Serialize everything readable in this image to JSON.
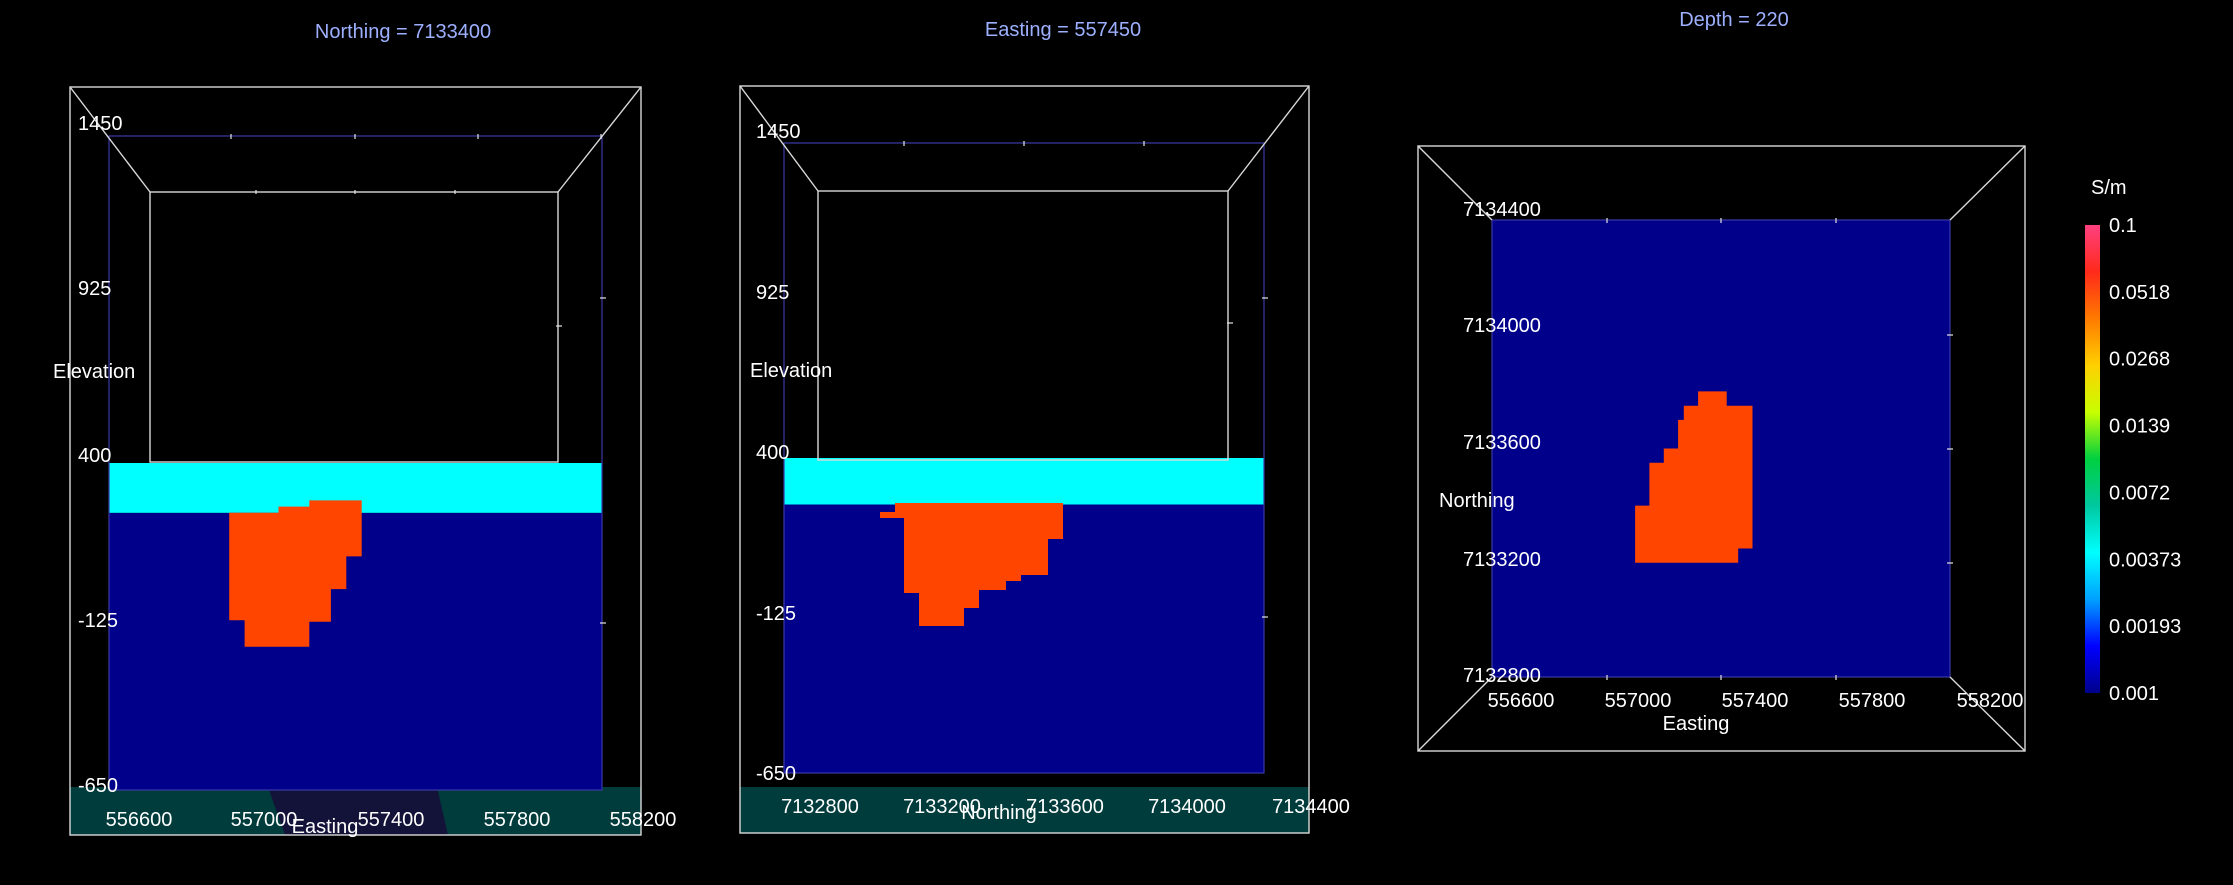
{
  "colors": {
    "background": "#000000",
    "low": "#00008b",
    "cap": "#00ffff",
    "anomaly": "#ff4500",
    "floor": "#003c3c",
    "title": "#9db0ff",
    "text": "#ffffff"
  },
  "chart_data": [
    {
      "type": "heatmap",
      "view": "section",
      "title": "Northing =  7133400",
      "xlabel": "Easting",
      "ylabel": "Elevation",
      "xlim": [
        556600,
        558200
      ],
      "ylim": [
        -650,
        1450
      ],
      "x_ticks": [
        "556600",
        "557000",
        "557400",
        "557800",
        "558200"
      ],
      "y_ticks": [
        "1450",
        "925",
        "400",
        "-125",
        "-650"
      ],
      "cells": [
        {
          "value": 0.001,
          "x": [
            556600,
            558200
          ],
          "y": [
            -650,
            240
          ]
        },
        {
          "value": 0.00373,
          "x": [
            556600,
            558200
          ],
          "y": [
            240,
            400
          ]
        },
        {
          "value": 0.0518,
          "polygon": [
            [
              557250,
              280
            ],
            [
              557420,
              280
            ],
            [
              557420,
              100
            ],
            [
              557370,
              100
            ],
            [
              557370,
              -5
            ],
            [
              557320,
              -5
            ],
            [
              557320,
              -110
            ],
            [
              557250,
              -110
            ],
            [
              557250,
              -190
            ],
            [
              557040,
              -190
            ],
            [
              557040,
              -105
            ],
            [
              556990,
              -105
            ],
            [
              556990,
              240
            ],
            [
              557150,
              240
            ],
            [
              557150,
              260
            ],
            [
              557250,
              260
            ]
          ]
        }
      ]
    },
    {
      "type": "heatmap",
      "view": "section",
      "title": "Easting =  557450",
      "xlabel": "Northing",
      "ylabel": "Elevation",
      "xlim": [
        7132800,
        7134400
      ],
      "ylim": [
        -650,
        1450
      ],
      "x_ticks": [
        "7132800",
        "7133200",
        "7133600",
        "7134000",
        "7134400"
      ],
      "y_ticks": [
        "1450",
        "925",
        "400",
        "-125",
        "-650"
      ],
      "cells": [
        {
          "value": 0.001,
          "x": [
            7132800,
            7134400
          ],
          "y": [
            -650,
            245
          ]
        },
        {
          "value": 0.00373,
          "x": [
            7132800,
            7134400
          ],
          "y": [
            245,
            400
          ]
        },
        {
          "value": 0.0518,
          "polygon": [
            [
              7133170,
              250
            ],
            [
              7133730,
              250
            ],
            [
              7133730,
              130
            ],
            [
              7133680,
              130
            ],
            [
              7133680,
              10
            ],
            [
              7133590,
              10
            ],
            [
              7133590,
              -10
            ],
            [
              7133540,
              -10
            ],
            [
              7133540,
              -40
            ],
            [
              7133450,
              -40
            ],
            [
              7133450,
              -100
            ],
            [
              7133400,
              -100
            ],
            [
              7133400,
              -160
            ],
            [
              7133250,
              -160
            ],
            [
              7133250,
              -50
            ],
            [
              7133200,
              -50
            ],
            [
              7133200,
              200
            ],
            [
              7133120,
              200
            ],
            [
              7133120,
              220
            ],
            [
              7133170,
              220
            ]
          ]
        }
      ]
    },
    {
      "type": "heatmap",
      "view": "plan",
      "title": "Depth =  220",
      "xlabel": "Easting",
      "ylabel": "Northing",
      "xlim": [
        556600,
        558200
      ],
      "ylim": [
        7132800,
        7134400
      ],
      "x_ticks": [
        "556600",
        "557000",
        "557400",
        "557800",
        "558200"
      ],
      "y_ticks": [
        "7134400",
        "7134000",
        "7133600",
        "7133200",
        "7132800"
      ],
      "cells": [
        {
          "value": 0.001,
          "x": [
            556600,
            558200
          ],
          "y": [
            7132800,
            7134400
          ]
        },
        {
          "value": 0.0518,
          "polygon": [
            [
              557320,
              7133800
            ],
            [
              557420,
              7133800
            ],
            [
              557420,
              7133750
            ],
            [
              557510,
              7133750
            ],
            [
              557510,
              7133250
            ],
            [
              557460,
              7133250
            ],
            [
              557460,
              7133200
            ],
            [
              557370,
              7133200
            ],
            [
              557370,
              7133200
            ],
            [
              557260,
              7133200
            ],
            [
              557260,
              7133200
            ],
            [
              557260,
              7133200
            ],
            [
              557200,
              7133200
            ],
            [
              557200,
              7133200
            ],
            [
              557150,
              7133200
            ],
            [
              557150,
              7133200
            ],
            [
              557100,
              7133200
            ],
            [
              557100,
              7133200
            ],
            [
              557100,
              7133200
            ],
            [
              557100,
              7133200
            ],
            [
              557100,
              7133200
            ],
            [
              557100,
              7133200
            ],
            [
              557100,
              7133200
            ],
            [
              557100,
              7133400
            ],
            [
              557150,
              7133400
            ],
            [
              557150,
              7133550
            ],
            [
              557200,
              7133550
            ],
            [
              557200,
              7133600
            ],
            [
              557250,
              7133600
            ],
            [
              557250,
              7133700
            ],
            [
              557270,
              7133700
            ],
            [
              557270,
              7133750
            ],
            [
              557320,
              7133750
            ]
          ]
        }
      ]
    }
  ],
  "colorbar": {
    "unit": "S/m",
    "labels": [
      "0.1",
      "0.0518",
      "0.0268",
      "0.0139",
      "0.0072",
      "0.00373",
      "0.00193",
      "0.001"
    ],
    "stops": [
      "#ff4080",
      "#ff2a1a",
      "#ff7a00",
      "#ffd000",
      "#c8ff00",
      "#00d040",
      "#00c8a0",
      "#00ffff",
      "#00a0ff",
      "#0000ff",
      "#00008b"
    ]
  }
}
